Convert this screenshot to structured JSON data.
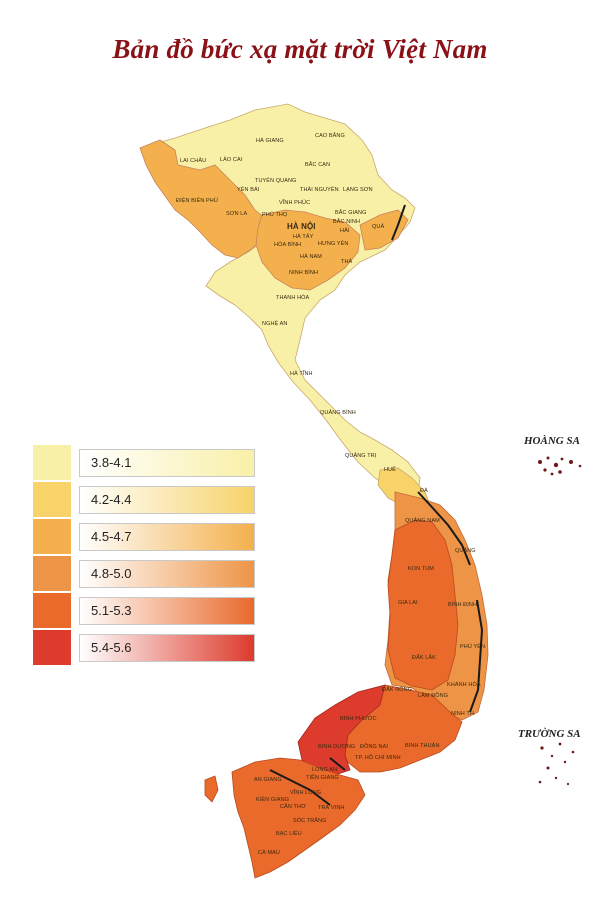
{
  "title": "Bản đồ bức xạ mặt trời Việt Nam",
  "legend": [
    {
      "label": "3.8-4.1",
      "color": "#f9f0a8"
    },
    {
      "label": "4.2-4.4",
      "color": "#f7d36a"
    },
    {
      "label": "4.5-4.7",
      "color": "#f3b04c"
    },
    {
      "label": "4.8-5.0",
      "color": "#ee9446"
    },
    {
      "label": "5.1-5.3",
      "color": "#e96a2b"
    },
    {
      "label": "5.4-5.6",
      "color": "#dd3b2c"
    }
  ],
  "islands": {
    "hoang_sa": "HOÀNG SA",
    "truong_sa": "TRƯỜNG SA"
  },
  "provinces": {
    "ha_giang": "HÀ GIANG",
    "cao_bang": "CAO BẰNG",
    "lai_chau": "LAI CHÂU",
    "lao_cai": "LÀO CAI",
    "bac_can": "BẮC CẠN",
    "tuyen_quang": "TUYÊN QUANG",
    "thai_nguyen": "THÁI NGUYÊN",
    "yen_bai": "YÊN BÁI",
    "lang_son": "LẠNG SƠN",
    "vinh_phuc": "VĨNH PHÚC",
    "dien_bien_phu": "ĐIỆN BIÊN PHỦ",
    "son_la": "SƠN LA",
    "phu_tho": "PHÚ THỌ",
    "bac_giang": "BẮC GIANG",
    "bac_ninh": "BẮC NINH",
    "ha_noi": "HÀ NỘI",
    "hai": "HẢI",
    "quang": "QUẢ",
    "ha_tay": "HÀ TÂY",
    "hoa_binh": "HÒA BÌNH",
    "hung_yen": "HƯNG YÊN",
    "ha_nam": "HÀ NAM",
    "tha": "THÁ",
    "ninh_binh": "NINH BÌNH",
    "thanh_hoa": "THANH HÓA",
    "nghe_an": "NGHỆ AN",
    "ha_tinh": "HÀ TĨNH",
    "quang_binh": "QUẢNG BÌNH",
    "quang_tri": "QUẢNG TRỊ",
    "hue": "HUẾ",
    "da": "ĐÀ",
    "quang_nam": "QUẢNG NAM",
    "quang_ngai": "QUẢNG",
    "kon_tum": "KON TUM",
    "gia_lai": "GIA LAI",
    "binh_dinh": "BÌNH ĐỊNH",
    "phu_yen": "PHÚ YÊN",
    "dak_lak": "ĐẮK LẮK",
    "khanh_hoa": "KHÁNH HÒA",
    "dak_nong": "ĐẮK NÔNG",
    "lam_dong": "LÂM ĐỒNG",
    "ninh_thuan": "NINH TH.",
    "binh_phuoc": "BÌNH PHƯỚC",
    "binh_duong": "BÌNH DƯƠNG",
    "dong_nai": "ĐỒNG NAI",
    "binh_thuan": "BÌNH THUẬN",
    "tp_hcm": "TP. HỒ CHÍ MINH",
    "long_an": "LONG AN",
    "tien_giang": "TIỀN GIANG",
    "an_giang": "AN GIANG",
    "vinh_long": "VĨNH LONG",
    "kien_giang": "KIÊN GIANG",
    "can_tho": "CẦN THƠ",
    "tra_vinh": "TRÀ VINH",
    "soc_trang": "SÓC TRĂNG",
    "bac_lieu": "BẠC LIÊU",
    "ca_mau": "CÀ MAU"
  }
}
